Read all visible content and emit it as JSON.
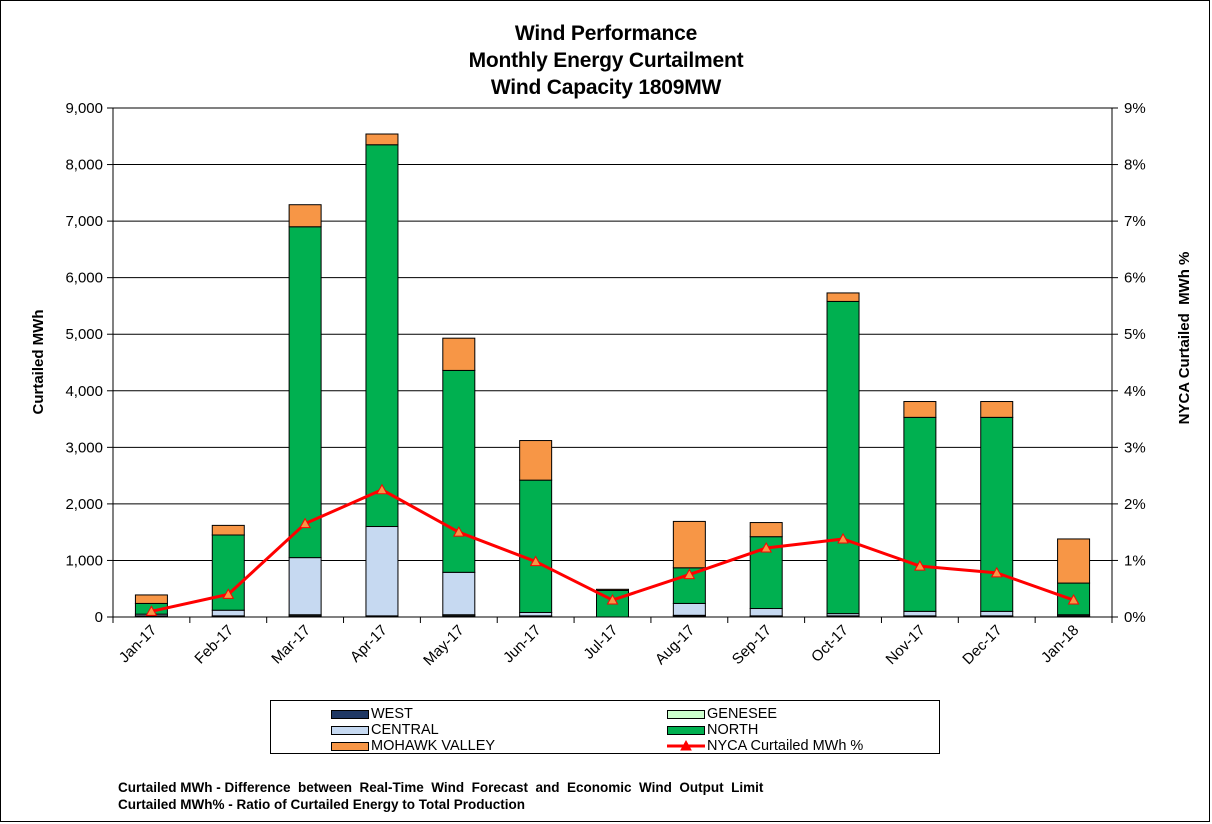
{
  "title_lines": [
    "Wind Performance",
    "Monthly Energy Curtailment",
    "Wind Capacity 1809MW"
  ],
  "notes": [
    "Curtailed MWh - Difference  between  Real-Time  Wind  Forecast  and  Economic  Wind  Output  Limit",
    "Curtailed MWh% - Ratio of Curtailed Energy to Total Production"
  ],
  "colors": {
    "west": "#1f3864",
    "genesee": "#ccffcc",
    "central": "#c6d9f1",
    "north": "#00b050",
    "mohawk": "#f79646",
    "pct_line": "#ff0000"
  },
  "legend": {
    "west": "WEST",
    "genesee": "GENESEE",
    "central": "CENTRAL",
    "north": "NORTH",
    "mohawk": "MOHAWK VALLEY",
    "pct": "NYCA Curtailed MWh %"
  },
  "chart_data": {
    "type": "bar",
    "stacked": true,
    "categories": [
      "Jan-17",
      "Feb-17",
      "Mar-17",
      "Apr-17",
      "May-17",
      "Jun-17",
      "Jul-17",
      "Aug-17",
      "Sep-17",
      "Oct-17",
      "Nov-17",
      "Dec-17",
      "Jan-18"
    ],
    "series": [
      {
        "name": "WEST",
        "values": [
          10,
          10,
          20,
          10,
          20,
          10,
          0,
          20,
          10,
          10,
          10,
          10,
          10
        ]
      },
      {
        "name": "GENESEE",
        "values": [
          10,
          10,
          20,
          10,
          20,
          10,
          0,
          10,
          10,
          10,
          10,
          10,
          10
        ]
      },
      {
        "name": "CENTRAL",
        "values": [
          30,
          100,
          1010,
          1580,
          750,
          60,
          0,
          210,
          130,
          40,
          80,
          80,
          20
        ]
      },
      {
        "name": "NORTH",
        "values": [
          190,
          1330,
          5850,
          6750,
          3570,
          2340,
          470,
          630,
          1270,
          5520,
          3430,
          3430,
          560
        ]
      },
      {
        "name": "MOHAWK VALLEY",
        "values": [
          150,
          170,
          390,
          190,
          570,
          700,
          20,
          820,
          250,
          150,
          280,
          280,
          780
        ]
      }
    ],
    "line_series": {
      "name": "NYCA Curtailed MWh %",
      "axis": "right",
      "values": [
        0.1,
        0.4,
        1.65,
        2.25,
        1.5,
        0.98,
        0.3,
        0.75,
        1.22,
        1.38,
        0.9,
        0.78,
        0.3
      ]
    },
    "ylabel": "Curtailed MWh",
    "y2label": "NYCA Curtailed  MWh %",
    "ylim": [
      0,
      9000
    ],
    "y2lim": [
      0,
      9
    ],
    "yticks": [
      "0",
      "1,000",
      "2,000",
      "3,000",
      "4,000",
      "5,000",
      "6,000",
      "7,000",
      "8,000",
      "9,000"
    ],
    "y2ticks": [
      "0%",
      "1%",
      "2%",
      "3%",
      "4%",
      "5%",
      "6%",
      "7%",
      "8%",
      "9%"
    ],
    "grid": "horizontal",
    "legend_position": "bottom"
  }
}
